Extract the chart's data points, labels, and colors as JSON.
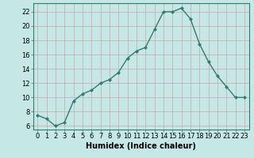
{
  "x": [
    0,
    1,
    2,
    3,
    4,
    5,
    6,
    7,
    8,
    9,
    10,
    11,
    12,
    13,
    14,
    15,
    16,
    17,
    18,
    19,
    20,
    21,
    22,
    23
  ],
  "y": [
    7.5,
    7.0,
    6.0,
    6.5,
    9.5,
    10.5,
    11.0,
    12.0,
    12.5,
    13.5,
    15.5,
    16.5,
    17.0,
    19.5,
    22.0,
    22.0,
    22.5,
    21.0,
    17.5,
    15.0,
    13.0,
    11.5,
    10.0,
    10.0
  ],
  "line_color": "#2e7d6e",
  "marker": "D",
  "markersize": 2,
  "linewidth": 1.0,
  "xlabel": "Humidex (Indice chaleur)",
  "xlabel_fontsize": 7,
  "bg_color": "#c5e8e6",
  "grid_color": "#c8a8a8",
  "ylim": [
    5.5,
    23.2
  ],
  "xlim": [
    -0.5,
    23.5
  ],
  "yticks": [
    6,
    8,
    10,
    12,
    14,
    16,
    18,
    20,
    22
  ],
  "xtick_labels": [
    "0",
    "1",
    "2",
    "3",
    "4",
    "5",
    "6",
    "7",
    "8",
    "9",
    "10",
    "11",
    "12",
    "13",
    "14",
    "15",
    "16",
    "17",
    "18",
    "19",
    "20",
    "21",
    "22",
    "23"
  ],
  "tick_fontsize": 6,
  "spine_color": "#2e7d6e"
}
